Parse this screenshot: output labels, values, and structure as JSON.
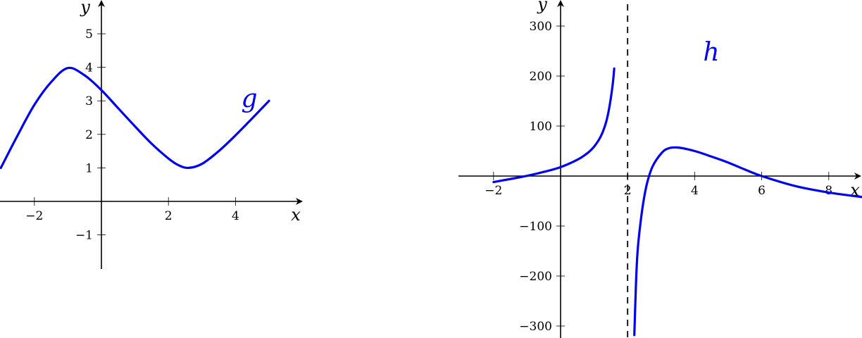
{
  "colors": {
    "curve": "#0000ee",
    "axis": "#000000"
  },
  "chart_data": [
    {
      "type": "line",
      "function_label": "g",
      "xlabel": "x",
      "ylabel": "y",
      "xlim": [
        -3,
        6
      ],
      "ylim": [
        -2,
        6
      ],
      "x_ticks": [
        -2,
        2,
        4
      ],
      "x_tick_labels": [
        "−2",
        "2",
        "4"
      ],
      "y_ticks": [
        -1,
        1,
        2,
        3,
        4,
        5
      ],
      "y_tick_labels": [
        "−1",
        "1",
        "2",
        "3",
        "4",
        "5"
      ],
      "grid": false,
      "series": [
        {
          "name": "g",
          "x": [
            -3,
            -2.5,
            -2,
            -1.5,
            -1,
            -0.5,
            0,
            0.5,
            1,
            1.5,
            2,
            2.3,
            2.6,
            3,
            3.5,
            4,
            4.5,
            5
          ],
          "y": [
            1.0,
            1.97,
            2.88,
            3.56,
            3.98,
            3.76,
            3.32,
            2.78,
            2.24,
            1.72,
            1.28,
            1.08,
            1.0,
            1.12,
            1.5,
            1.97,
            2.48,
            3.0
          ]
        }
      ]
    },
    {
      "type": "line",
      "function_label": "h",
      "xlabel": "x",
      "ylabel": "y",
      "xlim": [
        -3,
        9
      ],
      "ylim": [
        -320,
        330
      ],
      "x_ticks": [
        -2,
        2,
        4,
        6,
        8
      ],
      "x_tick_labels": [
        "−2",
        "2",
        "4",
        "6",
        "8"
      ],
      "y_ticks": [
        -300,
        -200,
        -100,
        100,
        200,
        300
      ],
      "y_tick_labels": [
        "−300",
        "−200",
        "−100",
        "100",
        "200",
        "300"
      ],
      "vertical_asymptote_x": 2,
      "grid": false,
      "series": [
        {
          "name": "h",
          "segments": [
            {
              "x": [
                -2,
                -1.5,
                -1,
                -0.5,
                0,
                0.5,
                0.8,
                1.0,
                1.2,
                1.35,
                1.45,
                1.55,
                1.6
              ],
              "y": [
                -12,
                -6,
                0.5,
                8.3,
                17.8,
                32.6,
                45.8,
                58.8,
                79.5,
                106,
                135.9,
                180.5,
                215
              ]
            },
            {
              "x": [
                2.2,
                2.25,
                2.3,
                2.4,
                2.5,
                2.6,
                2.75,
                3.0,
                3.2,
                3.5,
                4.0,
                4.5,
                5.0,
                5.5,
                6.0,
                7.0,
                8.0,
                9.0
              ],
              "y": [
                -318,
                -214,
                -148,
                -85,
                -40,
                -9,
                20,
                45,
                55,
                57,
                50,
                39,
                27,
                13,
                0,
                -20,
                -33,
                -42
              ]
            }
          ]
        }
      ]
    }
  ]
}
